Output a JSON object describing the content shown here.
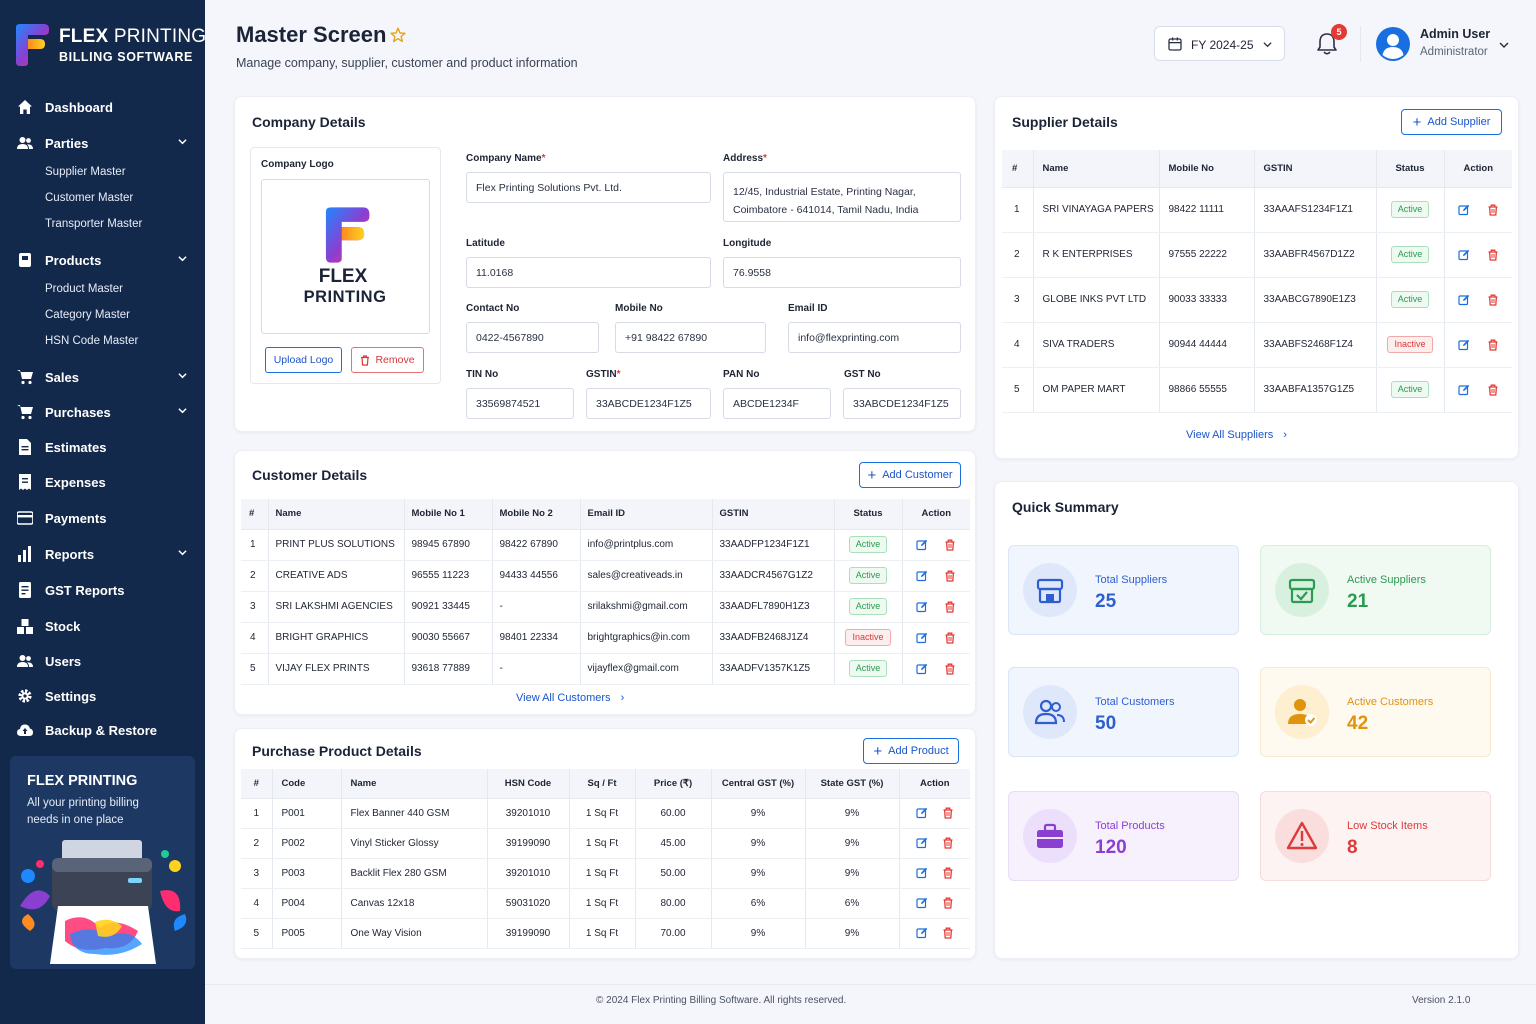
{
  "brand": {
    "name_bold": "FLEX",
    "name_rest": " PRINTING",
    "tagline": "BILLING SOFTWARE"
  },
  "sidebar": {
    "items": [
      {
        "label": "Dashboard",
        "icon": "home-icon"
      },
      {
        "label": "Parties",
        "icon": "users-icon",
        "sub": [
          "Supplier Master",
          "Customer Master",
          "Transporter Master"
        ]
      },
      {
        "label": "Products",
        "icon": "box-icon",
        "sub": [
          "Product Master",
          "Category Master",
          "HSN Code Master"
        ]
      },
      {
        "label": "Sales",
        "icon": "cart-icon"
      },
      {
        "label": "Purchases",
        "icon": "cart-icon"
      },
      {
        "label": "Estimates",
        "icon": "document-icon"
      },
      {
        "label": "Expenses",
        "icon": "receipt-icon"
      },
      {
        "label": "Payments",
        "icon": "card-icon"
      },
      {
        "label": "Reports",
        "icon": "bar-chart-icon"
      },
      {
        "label": "GST Reports",
        "icon": "report-icon"
      },
      {
        "label": "Stock",
        "icon": "stock-icon"
      },
      {
        "label": "Users",
        "icon": "users-icon"
      },
      {
        "label": "Settings",
        "icon": "gear-icon"
      },
      {
        "label": "Backup & Restore",
        "icon": "cloud-upload-icon"
      }
    ],
    "promo": {
      "title": "FLEX PRINTING",
      "text": "All your printing billing needs in one place"
    }
  },
  "header": {
    "title": "Master Screen",
    "subtitle": "Manage company, supplier, customer and product information",
    "fy": "FY 2024-25",
    "notifications": "5",
    "user_name": "Admin User",
    "user_role": "Administrator"
  },
  "company": {
    "title": "Company Details",
    "logo_label": "Company Logo",
    "logo_text1": "FLEX",
    "logo_text2": "PRINTING",
    "upload": "Upload Logo",
    "remove": "Remove",
    "fields": {
      "company_name": {
        "label": "Company Name",
        "value": "Flex Printing Solutions Pvt. Ltd."
      },
      "address": {
        "label": "Address",
        "value1": "12/45, Industrial Estate, Printing Nagar,",
        "value2": "Coimbatore - 641014, Tamil Nadu, India"
      },
      "latitude": {
        "label": "Latitude",
        "value": "11.0168"
      },
      "longitude": {
        "label": "Longitude",
        "value": "76.9558"
      },
      "contact": {
        "label": "Contact No",
        "value": "0422-4567890"
      },
      "mobile": {
        "label": "Mobile No",
        "value": "+91 98422 67890"
      },
      "email": {
        "label": "Email ID",
        "value": "info@flexprinting.com"
      },
      "tin": {
        "label": "TIN No",
        "value": "33569874521"
      },
      "gstin": {
        "label": "GSTIN",
        "value": "33ABCDE1234F1Z5"
      },
      "pan": {
        "label": "PAN No",
        "value": "ABCDE1234F"
      },
      "gst": {
        "label": "GST No",
        "value": "33ABCDE1234F1Z5"
      }
    }
  },
  "suppliers": {
    "title": "Supplier Details",
    "add": "Add Supplier",
    "view_all": "View All Suppliers",
    "headers": [
      "#",
      "Name",
      "Mobile No",
      "GSTIN",
      "Status",
      "Action"
    ],
    "rows": [
      {
        "no": "1",
        "name": "SRI VINAYAGA PAPERS",
        "mobile": "98422 11111",
        "gstin": "33AAAFS1234F1Z1",
        "status": "Active"
      },
      {
        "no": "2",
        "name": "R K ENTERPRISES",
        "mobile": "97555 22222",
        "gstin": "33AABFR4567D1Z2",
        "status": "Active"
      },
      {
        "no": "3",
        "name": "GLOBE INKS PVT LTD",
        "mobile": "90033 33333",
        "gstin": "33AABCG7890E1Z3",
        "status": "Active"
      },
      {
        "no": "4",
        "name": "SIVA TRADERS",
        "mobile": "90944 44444",
        "gstin": "33AABFS2468F1Z4",
        "status": "Inactive"
      },
      {
        "no": "5",
        "name": "OM PAPER MART",
        "mobile": "98866 55555",
        "gstin": "33AABFA1357G1Z5",
        "status": "Active"
      }
    ]
  },
  "customers": {
    "title": "Customer Details",
    "add": "Add Customer",
    "view_all": "View All Customers",
    "headers": [
      "#",
      "Name",
      "Mobile No 1",
      "Mobile No 2",
      "Email ID",
      "GSTIN",
      "Status",
      "Action"
    ],
    "rows": [
      {
        "no": "1",
        "name": "PRINT PLUS SOLUTIONS",
        "m1": "98945 67890",
        "m2": "98422 67890",
        "email": "info@printplus.com",
        "gstin": "33AADFP1234F1Z1",
        "status": "Active"
      },
      {
        "no": "2",
        "name": "CREATIVE ADS",
        "m1": "96555 11223",
        "m2": "94433 44556",
        "email": "sales@creativeads.in",
        "gstin": "33AADCR4567G1Z2",
        "status": "Active"
      },
      {
        "no": "3",
        "name": "SRI LAKSHMI AGENCIES",
        "m1": "90921 33445",
        "m2": "-",
        "email": "srilakshmi@gmail.com",
        "gstin": "33AADFL7890H1Z3",
        "status": "Active"
      },
      {
        "no": "4",
        "name": "BRIGHT GRAPHICS",
        "m1": "90030 55667",
        "m2": "98401 22334",
        "email": "brightgraphics@in.com",
        "gstin": "33AADFB2468J1Z4",
        "status": "Inactive"
      },
      {
        "no": "5",
        "name": "VIJAY FLEX PRINTS",
        "m1": "93618 77889",
        "m2": "-",
        "email": "vijayflex@gmail.com",
        "gstin": "33AADFV1357K1Z5",
        "status": "Active"
      }
    ]
  },
  "products": {
    "title": "Purchase Product Details",
    "add": "Add Product",
    "headers": [
      "#",
      "Code",
      "Name",
      "HSN Code",
      "Sq / Ft",
      "Price (₹)",
      "Central GST (%)",
      "State GST (%)",
      "Action"
    ],
    "rows": [
      {
        "no": "1",
        "code": "P001",
        "name": "Flex Banner 440 GSM",
        "hsn": "39201010",
        "sq": "1 Sq Ft",
        "price": "60.00",
        "cgst": "9%",
        "sgst": "9%"
      },
      {
        "no": "2",
        "code": "P002",
        "name": "Vinyl Sticker Glossy",
        "hsn": "39199090",
        "sq": "1 Sq Ft",
        "price": "45.00",
        "cgst": "9%",
        "sgst": "9%"
      },
      {
        "no": "3",
        "code": "P003",
        "name": "Backlit Flex 280 GSM",
        "hsn": "39201010",
        "sq": "1 Sq Ft",
        "price": "50.00",
        "cgst": "9%",
        "sgst": "9%"
      },
      {
        "no": "4",
        "code": "P004",
        "name": "Canvas 12x18",
        "hsn": "59031020",
        "sq": "1 Sq Ft",
        "price": "80.00",
        "cgst": "6%",
        "sgst": "6%"
      },
      {
        "no": "5",
        "code": "P005",
        "name": "One Way Vision",
        "hsn": "39199090",
        "sq": "1 Sq Ft",
        "price": "70.00",
        "cgst": "9%",
        "sgst": "9%"
      }
    ]
  },
  "summary": {
    "title": "Quick Summary",
    "tiles": [
      {
        "label": "Total Suppliers",
        "value": "25",
        "color": "#2f5fcf",
        "icon": "store-icon"
      },
      {
        "label": "Active Suppliers",
        "value": "21",
        "color": "#2b9b52",
        "icon": "store-check-icon"
      },
      {
        "label": "Total Customers",
        "value": "50",
        "color": "#2f5fcf",
        "icon": "users-icon"
      },
      {
        "label": "Active Customers",
        "value": "42",
        "color": "#e0930f",
        "icon": "user-check-icon"
      },
      {
        "label": "Total Products",
        "value": "120",
        "color": "#8a3fd1",
        "icon": "briefcase-icon"
      },
      {
        "label": "Low Stock Items",
        "value": "8",
        "color": "#dc3b3b",
        "icon": "warning-icon"
      }
    ]
  },
  "footer": {
    "copyright": "© 2024 Flex Printing Billing Software. All rights reserved.",
    "version": "Version 2.1.0"
  }
}
